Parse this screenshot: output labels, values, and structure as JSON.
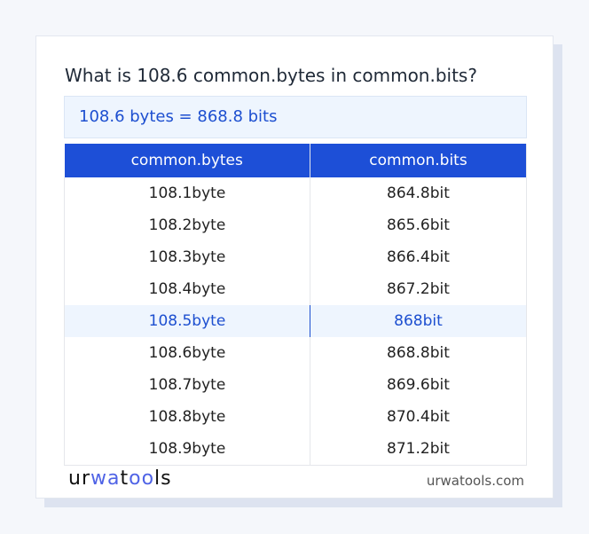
{
  "title": "What is 108.6 common.bytes in common.bits?",
  "result": "108.6 bytes = 868.8 bits",
  "headers": [
    "common.bytes",
    "common.bits"
  ],
  "rows": [
    [
      "108.1byte",
      "864.8bit"
    ],
    [
      "108.2byte",
      "865.6bit"
    ],
    [
      "108.3byte",
      "866.4bit"
    ],
    [
      "108.4byte",
      "867.2bit"
    ],
    [
      "108.5byte",
      "868bit"
    ],
    [
      "108.6byte",
      "868.8bit"
    ],
    [
      "108.7byte",
      "869.6bit"
    ],
    [
      "108.8byte",
      "870.4bit"
    ],
    [
      "108.9byte",
      "871.2bit"
    ]
  ],
  "highlight_row": 4,
  "logo": {
    "text": "urwatools",
    "accent": "#4f63e6"
  },
  "site": "urwatools.com",
  "colors": {
    "accent": "#1d4fd7",
    "highlight_bg": "#eef5fe"
  }
}
